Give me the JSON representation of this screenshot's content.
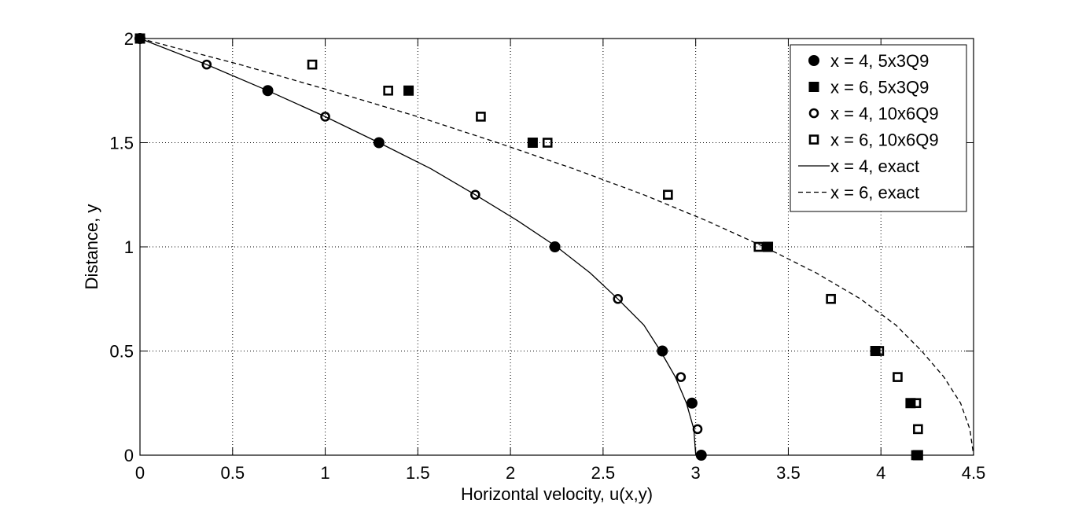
{
  "chart_data": {
    "type": "scatter",
    "title": "",
    "xlabel": "Horizontal velocity, u(x,y)",
    "ylabel": "Distance, y",
    "xlim": [
      0,
      4.5
    ],
    "ylim": [
      0,
      2
    ],
    "xticks": [
      0,
      0.5,
      1,
      1.5,
      2,
      2.5,
      3,
      3.5,
      4,
      4.5
    ],
    "xtick_labels": [
      "0",
      "0.5",
      "1",
      "1.5",
      "2",
      "2.5",
      "3",
      "3.5",
      "4",
      "4.5"
    ],
    "yticks": [
      0,
      0.5,
      1,
      1.5,
      2
    ],
    "ytick_labels": [
      "0",
      "0.5",
      "1",
      "1.5",
      "2"
    ],
    "grid": true,
    "legend_position": "top-right",
    "series": [
      {
        "name": "x = 4, 5x3Q9",
        "style": "filled-circle",
        "points": [
          [
            0,
            2
          ],
          [
            0.69,
            1.75
          ],
          [
            1.29,
            1.5
          ],
          [
            2.24,
            1.0
          ],
          [
            2.82,
            0.5
          ],
          [
            2.98,
            0.25
          ],
          [
            3.03,
            0
          ]
        ]
      },
      {
        "name": "x = 6, 5x3Q9",
        "style": "filled-square",
        "points": [
          [
            0,
            2
          ],
          [
            1.45,
            1.75
          ],
          [
            2.12,
            1.5
          ],
          [
            3.39,
            1.0
          ],
          [
            3.97,
            0.5
          ],
          [
            4.16,
            0.25
          ],
          [
            4.2,
            0
          ]
        ]
      },
      {
        "name": "x = 4, 10x6Q9",
        "style": "open-circle",
        "points": [
          [
            0,
            2
          ],
          [
            0.36,
            1.875
          ],
          [
            1.0,
            1.625
          ],
          [
            1.81,
            1.25
          ],
          [
            2.58,
            0.75
          ],
          [
            2.92,
            0.375
          ],
          [
            3.01,
            0.125
          ]
        ]
      },
      {
        "name": "x = 6, 10x6Q9",
        "style": "open-square",
        "points": [
          [
            0,
            2
          ],
          [
            0.93,
            1.875
          ],
          [
            1.34,
            1.75
          ],
          [
            1.84,
            1.625
          ],
          [
            2.2,
            1.5
          ],
          [
            2.85,
            1.25
          ],
          [
            3.34,
            1.0
          ],
          [
            3.73,
            0.75
          ],
          [
            3.99,
            0.5
          ],
          [
            4.09,
            0.375
          ],
          [
            4.19,
            0.25
          ],
          [
            4.2,
            0.125
          ],
          [
            4.19,
            0
          ]
        ]
      },
      {
        "name": "x = 4, exact",
        "style": "solid-line",
        "points": [
          [
            0,
            2
          ],
          [
            0.36,
            1.875
          ],
          [
            0.69,
            1.75
          ],
          [
            1.0,
            1.625
          ],
          [
            1.29,
            1.5
          ],
          [
            1.57,
            1.375
          ],
          [
            1.81,
            1.25
          ],
          [
            2.04,
            1.125
          ],
          [
            2.25,
            1.0
          ],
          [
            2.43,
            0.875
          ],
          [
            2.58,
            0.75
          ],
          [
            2.72,
            0.625
          ],
          [
            2.81,
            0.5
          ],
          [
            2.89,
            0.375
          ],
          [
            2.95,
            0.25
          ],
          [
            2.99,
            0.125
          ],
          [
            3.0,
            0
          ]
        ]
      },
      {
        "name": "x = 6, exact",
        "style": "dashed-line",
        "points": [
          [
            0,
            2
          ],
          [
            0.54,
            1.875
          ],
          [
            1.03,
            1.75
          ],
          [
            1.5,
            1.625
          ],
          [
            1.93,
            1.5
          ],
          [
            2.34,
            1.375
          ],
          [
            2.72,
            1.25
          ],
          [
            3.06,
            1.125
          ],
          [
            3.37,
            1.0
          ],
          [
            3.65,
            0.875
          ],
          [
            3.89,
            0.75
          ],
          [
            4.08,
            0.625
          ],
          [
            4.22,
            0.5
          ],
          [
            4.34,
            0.375
          ],
          [
            4.43,
            0.25
          ],
          [
            4.48,
            0.125
          ],
          [
            4.5,
            0
          ]
        ]
      }
    ]
  }
}
